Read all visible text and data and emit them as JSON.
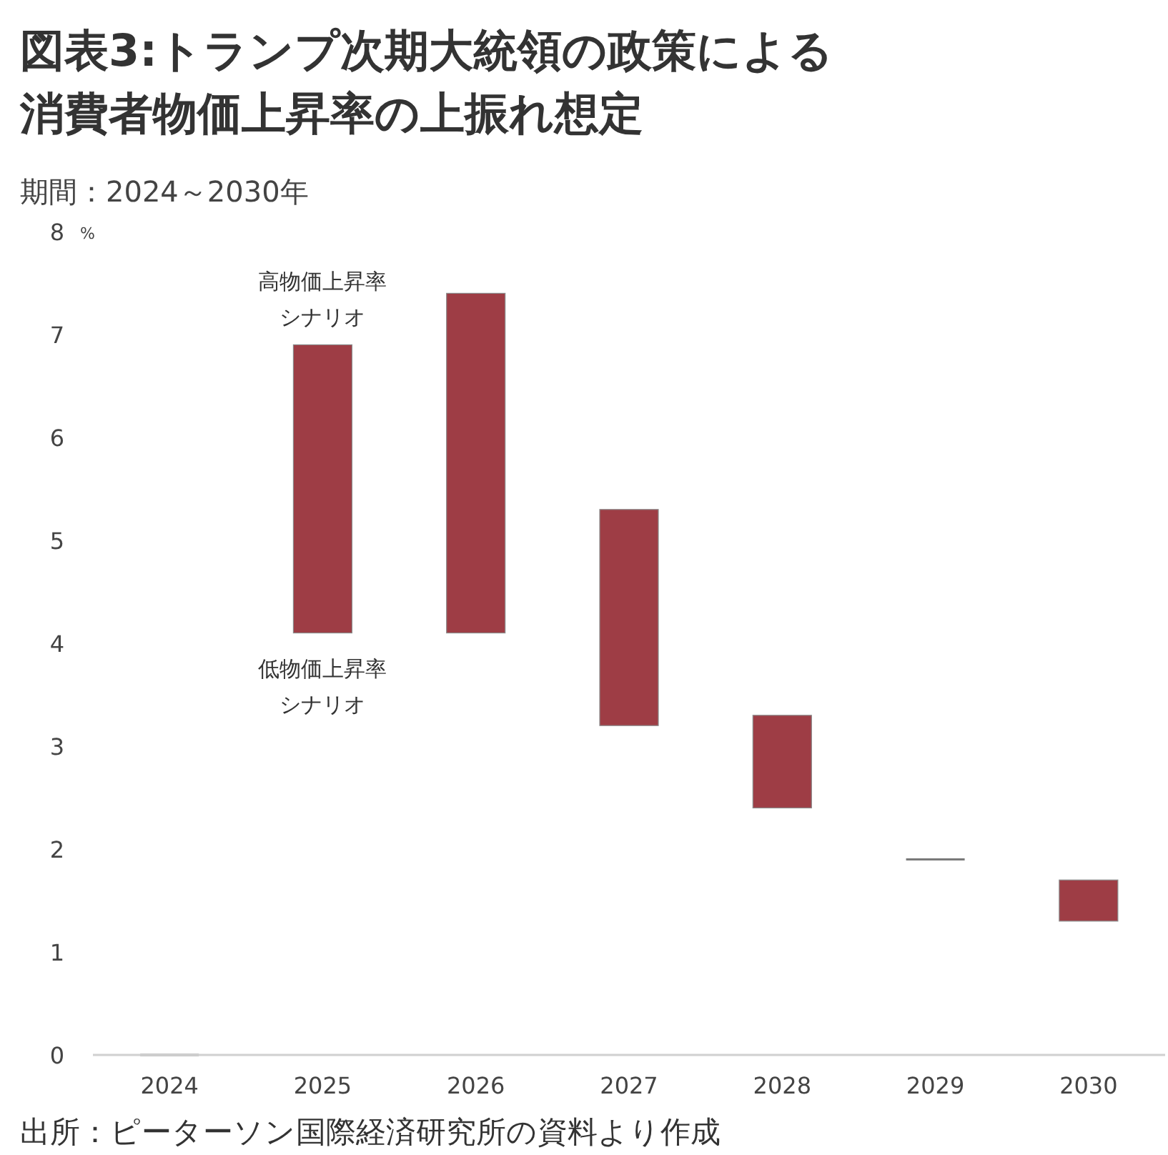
{
  "chart_data": {
    "type": "bar",
    "title": "図表3:トランプ次期大統領の政策による消費者物価上昇率の上振れ想定",
    "subtitle": "期間：2024～2030年",
    "ylabel": "%",
    "categories": [
      "2024",
      "2025",
      "2026",
      "2027",
      "2028",
      "2029",
      "2030"
    ],
    "base": [
      0,
      4.1,
      4.1,
      3.2,
      2.4,
      1.9,
      1.3
    ],
    "values": [
      0,
      2.8,
      3.3,
      2.1,
      0.9,
      0,
      0.4
    ],
    "colors": [
      "#777777",
      "#9e3d45",
      "#9e3d45",
      "#9e3d45",
      "#9e3d45",
      "#777777",
      "#9e3d45"
    ],
    "ylim": [
      0,
      8
    ],
    "yticks": [
      0,
      1,
      2,
      3,
      4,
      5,
      6,
      7,
      8
    ],
    "grid": false,
    "annotations": [
      {
        "text": "高物価上昇率シナリオ",
        "x": "2025",
        "y": 6.9
      },
      {
        "text": "低物価上昇率シナリオ",
        "x": "2025",
        "y": 4.1
      },
      "出所：ピーターソン国際経済研究所の資料より作成"
    ]
  }
}
